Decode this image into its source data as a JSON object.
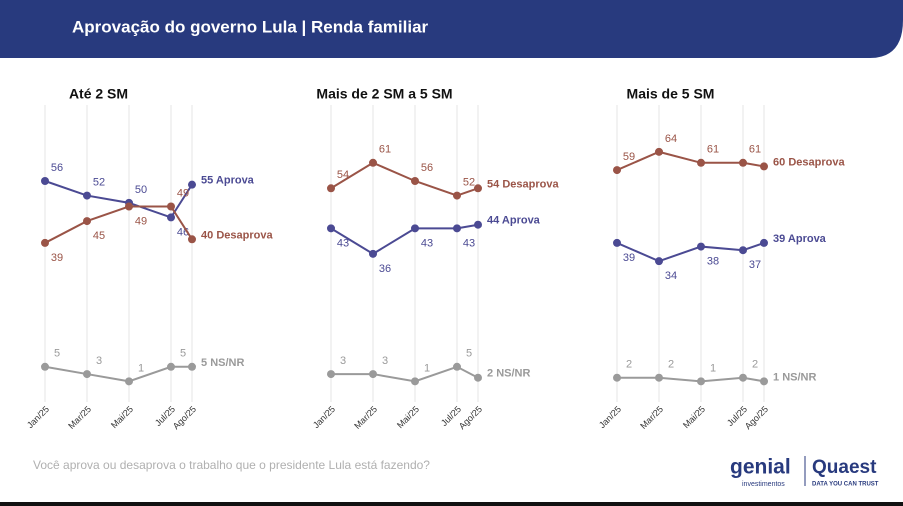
{
  "header": {
    "title": "Aprovação do governo Lula | Renda familiar"
  },
  "chart_data": [
    {
      "type": "line",
      "title": "Até 2 SM",
      "categories": [
        "Jan/25",
        "Mar/25",
        "Mai/25",
        "Jul/25",
        "Ago/25"
      ],
      "series": [
        {
          "name": "Aprova",
          "color": "#4b4a93",
          "values": [
            56,
            52,
            50,
            46,
            55
          ]
        },
        {
          "name": "Desaprova",
          "color": "#9a5447",
          "values": [
            39,
            45,
            49,
            49,
            40
          ]
        },
        {
          "name": "NS/NR",
          "color": "#9a9a9a",
          "values": [
            5,
            3,
            1,
            5,
            5
          ]
        }
      ],
      "ylim": [
        0,
        70
      ],
      "grid": true
    },
    {
      "type": "line",
      "title": "Mais de 2 SM a 5 SM",
      "categories": [
        "Jan/25",
        "Mar/25",
        "Mai/25",
        "Jul/25",
        "Ago/25"
      ],
      "series": [
        {
          "name": "Aprova",
          "color": "#4b4a93",
          "values": [
            43,
            36,
            43,
            43,
            44
          ]
        },
        {
          "name": "Desaprova",
          "color": "#9a5447",
          "values": [
            54,
            61,
            56,
            52,
            54
          ]
        },
        {
          "name": "NS/NR",
          "color": "#9a9a9a",
          "values": [
            3,
            3,
            1,
            5,
            2
          ]
        }
      ],
      "ylim": [
        0,
        70
      ],
      "grid": true
    },
    {
      "type": "line",
      "title": "Mais de 5 SM",
      "categories": [
        "Jan/25",
        "Mar/25",
        "Mai/25",
        "Jul/25",
        "Ago/25"
      ],
      "series": [
        {
          "name": "Aprova",
          "color": "#4b4a93",
          "values": [
            39,
            34,
            38,
            37,
            39
          ]
        },
        {
          "name": "Desaprova",
          "color": "#9a5447",
          "values": [
            59,
            64,
            61,
            61,
            60
          ]
        },
        {
          "name": "NS/NR",
          "color": "#9a9a9a",
          "values": [
            2,
            2,
            1,
            2,
            1
          ]
        }
      ],
      "ylim": [
        0,
        70
      ],
      "grid": true
    }
  ],
  "footer": {
    "question": "Você aprova ou desaprova o trabalho que o presidente Lula está fazendo?",
    "brand1": "genial",
    "brand1_sub": "investimentos",
    "brand2": "Quaest",
    "brand2_sub": "DATA YOU CAN TRUST"
  }
}
